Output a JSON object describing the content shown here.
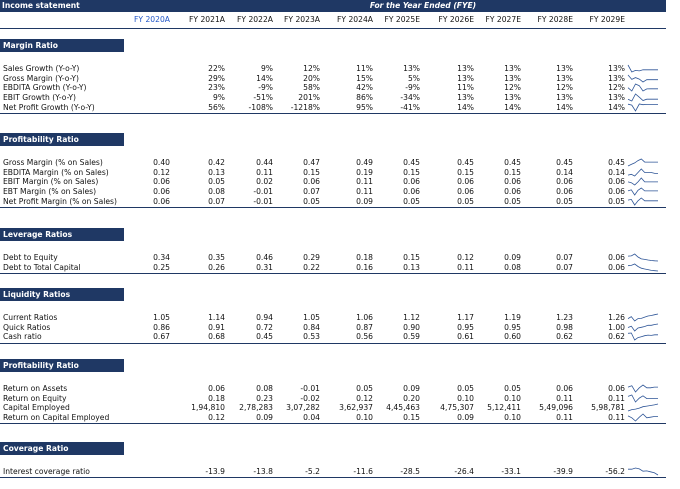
{
  "header": {
    "title": "Income statement",
    "fye_label": "For the Year Ended (FYE)"
  },
  "years": [
    "FY 2020A",
    "FY 2021A",
    "FY 2022A",
    "FY 2023A",
    "FY 2024A",
    "FY 2025E",
    "FY 2026E",
    "FY 2027E",
    "FY 2028E",
    "FY 2029E"
  ],
  "sections": [
    {
      "title": "Margin Ratio",
      "rows": [
        {
          "label": "Sales Growth (Y-o-Y)",
          "values": [
            "",
            "22%",
            "9%",
            "12%",
            "11%",
            "13%",
            "13%",
            "13%",
            "13%",
            "13%"
          ],
          "spark": [
            22,
            9,
            12,
            11,
            13,
            13,
            13,
            13,
            13
          ]
        },
        {
          "label": "Gross Margin (Y-o-Y)",
          "values": [
            "",
            "29%",
            "14%",
            "20%",
            "15%",
            "5%",
            "13%",
            "13%",
            "13%",
            "13%"
          ],
          "spark": [
            29,
            14,
            20,
            15,
            5,
            13,
            13,
            13,
            13
          ]
        },
        {
          "label": "EBDITA Growth (Y-o-Y)",
          "values": [
            "",
            "23%",
            "-9%",
            "58%",
            "42%",
            "-9%",
            "11%",
            "12%",
            "12%",
            "12%"
          ],
          "spark": [
            23,
            -9,
            58,
            42,
            -9,
            11,
            12,
            12,
            12
          ]
        },
        {
          "label": "EBIT Growth (Y-o-Y)",
          "values": [
            "",
            "9%",
            "-51%",
            "201%",
            "86%",
            "-34%",
            "13%",
            "13%",
            "13%",
            "13%"
          ],
          "spark": [
            9,
            -51,
            201,
            86,
            -34,
            13,
            13,
            13,
            13
          ]
        },
        {
          "label": "Net Profit Growth (Y-o-Y)",
          "values": [
            "",
            "56%",
            "-108%",
            "-1218%",
            "95%",
            "-41%",
            "14%",
            "14%",
            "14%",
            "14%"
          ],
          "spark": [
            56,
            -108,
            -1218,
            95,
            -41,
            14,
            14,
            14,
            14
          ]
        }
      ]
    },
    {
      "title": "Profitability Ratio",
      "rows": [
        {
          "label": "Gross Margin (% on Sales)",
          "values": [
            "0.40",
            "0.42",
            "0.44",
            "0.47",
            "0.49",
            "0.45",
            "0.45",
            "0.45",
            "0.45",
            "0.45"
          ],
          "spark": [
            0.4,
            0.42,
            0.44,
            0.47,
            0.49,
            0.45,
            0.45,
            0.45,
            0.45,
            0.45
          ]
        },
        {
          "label": "EBDITA Margin (% on Sales)",
          "values": [
            "0.12",
            "0.13",
            "0.11",
            "0.15",
            "0.19",
            "0.15",
            "0.15",
            "0.15",
            "0.14",
            "0.14"
          ],
          "spark": [
            0.12,
            0.13,
            0.11,
            0.15,
            0.19,
            0.15,
            0.15,
            0.15,
            0.14,
            0.14
          ]
        },
        {
          "label": "EBIT Margin (% on Sales)",
          "values": [
            "0.06",
            "0.05",
            "0.02",
            "0.06",
            "0.11",
            "0.06",
            "0.06",
            "0.06",
            "0.06",
            "0.06"
          ],
          "spark": [
            0.06,
            0.05,
            0.02,
            0.06,
            0.11,
            0.06,
            0.06,
            0.06,
            0.06,
            0.06
          ]
        },
        {
          "label": "EBT Margin (% on Sales)",
          "values": [
            "0.06",
            "0.08",
            "-0.01",
            "0.07",
            "0.11",
            "0.06",
            "0.06",
            "0.06",
            "0.06",
            "0.06"
          ],
          "spark": [
            0.06,
            0.08,
            -0.01,
            0.07,
            0.11,
            0.06,
            0.06,
            0.06,
            0.06,
            0.06
          ]
        },
        {
          "label": "Net Profit Margin (% on Sales)",
          "values": [
            "0.06",
            "0.07",
            "-0.01",
            "0.05",
            "0.09",
            "0.05",
            "0.05",
            "0.05",
            "0.05",
            "0.05"
          ],
          "spark": [
            0.06,
            0.07,
            -0.01,
            0.05,
            0.09,
            0.05,
            0.05,
            0.05,
            0.05,
            0.05
          ]
        }
      ]
    },
    {
      "title": "Leverage Ratios",
      "rows": [
        {
          "label": "Debt to Equity",
          "values": [
            "0.34",
            "0.35",
            "0.46",
            "0.29",
            "0.18",
            "0.15",
            "0.12",
            "0.09",
            "0.07",
            "0.06"
          ],
          "spark": [
            0.34,
            0.35,
            0.46,
            0.29,
            0.18,
            0.15,
            0.12,
            0.09,
            0.07,
            0.06
          ]
        },
        {
          "label": "Debt to Total Capital",
          "values": [
            "0.25",
            "0.26",
            "0.31",
            "0.22",
            "0.16",
            "0.13",
            "0.11",
            "0.08",
            "0.07",
            "0.06"
          ],
          "spark": [
            0.25,
            0.26,
            0.31,
            0.22,
            0.16,
            0.13,
            0.11,
            0.08,
            0.07,
            0.06
          ]
        }
      ]
    },
    {
      "title": "Liquidity Ratios",
      "rows": [
        {
          "label": "Current Ratios",
          "values": [
            "1.05",
            "1.14",
            "0.94",
            "1.05",
            "1.06",
            "1.12",
            "1.17",
            "1.19",
            "1.23",
            "1.26"
          ],
          "spark": [
            1.05,
            1.14,
            0.94,
            1.05,
            1.06,
            1.12,
            1.17,
            1.19,
            1.23,
            1.26
          ]
        },
        {
          "label": "Quick Ratios",
          "values": [
            "0.86",
            "0.91",
            "0.72",
            "0.84",
            "0.87",
            "0.90",
            "0.95",
            "0.95",
            "0.98",
            "1.00"
          ],
          "spark": [
            0.86,
            0.91,
            0.72,
            0.84,
            0.87,
            0.9,
            0.95,
            0.95,
            0.98,
            1.0
          ]
        },
        {
          "label": "Cash ratio",
          "values": [
            "0.67",
            "0.68",
            "0.45",
            "0.53",
            "0.56",
            "0.59",
            "0.61",
            "0.60",
            "0.62",
            "0.62"
          ],
          "spark": [
            0.67,
            0.68,
            0.45,
            0.53,
            0.56,
            0.59,
            0.61,
            0.6,
            0.62,
            0.62
          ]
        }
      ]
    },
    {
      "title": "Profitability Ratio",
      "rows": [
        {
          "label": "Return on Assets",
          "values": [
            "",
            "0.06",
            "0.08",
            "-0.01",
            "0.05",
            "0.09",
            "0.05",
            "0.05",
            "0.06",
            "0.06"
          ],
          "spark": [
            0.06,
            0.08,
            -0.01,
            0.05,
            0.09,
            0.05,
            0.05,
            0.06,
            0.06
          ]
        },
        {
          "label": "Return on Equity",
          "values": [
            "",
            "0.18",
            "0.23",
            "-0.02",
            "0.12",
            "0.20",
            "0.10",
            "0.10",
            "0.11",
            "0.11"
          ],
          "spark": [
            0.18,
            0.23,
            -0.02,
            0.12,
            0.2,
            0.1,
            0.1,
            0.11,
            0.11
          ]
        },
        {
          "label": "Capital Employed",
          "values": [
            "",
            "1,94,810",
            "2,78,283",
            "3,07,282",
            "3,62,937",
            "4,45,463",
            "4,75,307",
            "5,12,411",
            "5,49,096",
            "5,98,781"
          ],
          "spark": [
            194810,
            278283,
            307282,
            362937,
            445463,
            475307,
            512411,
            549096,
            598781
          ]
        },
        {
          "label": "Return on Capital Employed",
          "values": [
            "",
            "0.12",
            "0.09",
            "0.04",
            "0.10",
            "0.15",
            "0.09",
            "0.10",
            "0.11",
            "0.11"
          ],
          "spark": [
            0.12,
            0.09,
            0.04,
            0.1,
            0.15,
            0.09,
            0.1,
            0.11,
            0.11
          ]
        }
      ]
    },
    {
      "title": "Coverage Ratio",
      "rows": [
        {
          "label": "Interest coverage ratio",
          "values": [
            "",
            "-13.9",
            "-13.8",
            "-5.2",
            "-11.6",
            "-28.5",
            "-26.4",
            "-33.1",
            "-39.9",
            "-56.2"
          ],
          "spark": [
            -13.9,
            -13.8,
            -5.2,
            -11.6,
            -28.5,
            -26.4,
            -33.1,
            -39.9,
            -56.2
          ]
        }
      ]
    }
  ],
  "colors": {
    "header_bg": "#1f3864",
    "first_year": "#1f55c8",
    "sparkline": "#2e5597"
  }
}
